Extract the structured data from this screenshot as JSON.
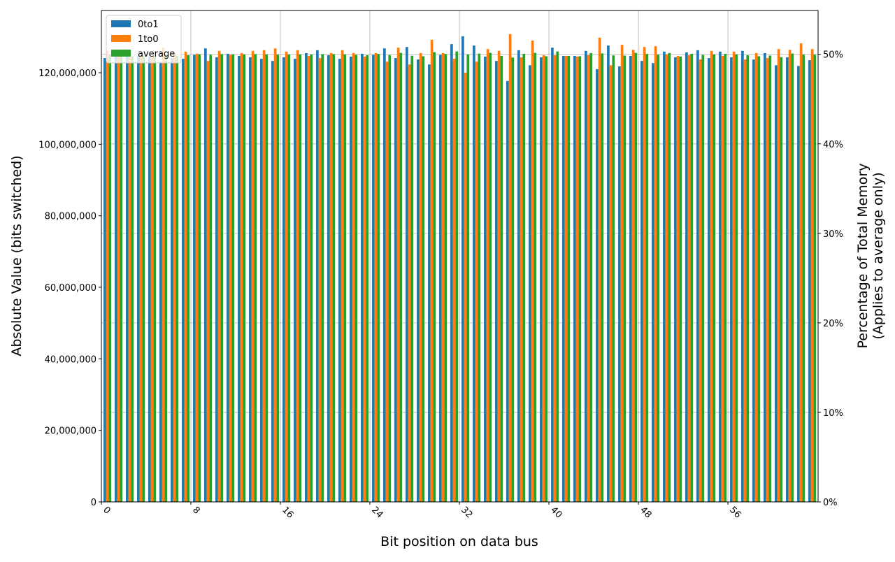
{
  "chart_data": {
    "type": "bar",
    "xlabel": "Bit position on data bus",
    "ylabel": "Absolute Value (bits switched)",
    "ylabel_right_line1": "Percentage of Total Memory",
    "ylabel_right_line2": "(Applies to average only)",
    "x": [
      0,
      1,
      2,
      3,
      4,
      5,
      6,
      7,
      8,
      9,
      10,
      11,
      12,
      13,
      14,
      15,
      16,
      17,
      18,
      19,
      20,
      21,
      22,
      23,
      24,
      25,
      26,
      27,
      28,
      29,
      30,
      31,
      32,
      33,
      34,
      35,
      36,
      37,
      38,
      39,
      40,
      41,
      42,
      43,
      44,
      45,
      46,
      47,
      48,
      49,
      50,
      51,
      52,
      53,
      54,
      55,
      56,
      57,
      58,
      59,
      60,
      61,
      62,
      63
    ],
    "xticks": [
      0,
      8,
      16,
      24,
      32,
      40,
      48,
      56
    ],
    "xlim": [
      0,
      64.06
    ],
    "ylim": [
      0,
      137400000
    ],
    "yticks": [
      0,
      20000000,
      40000000,
      60000000,
      80000000,
      100000000,
      120000000
    ],
    "ytick_labels": [
      "0",
      "20,000,000",
      "40,000,000",
      "60,000,000",
      "80,000,000",
      "100,000,000",
      "120,000,000"
    ],
    "ylim_right": [
      0,
      54.9
    ],
    "yticks_right": [
      0,
      10,
      20,
      30,
      40,
      50
    ],
    "ytick_labels_right": [
      "0%",
      "10%",
      "20%",
      "30%",
      "40%",
      "50%"
    ],
    "grid": "on (vertical at x ticks, horizontal at right-axis ticks)",
    "legend_placement": "top-left",
    "series": [
      {
        "name": "0to1",
        "color": "#1f77b4",
        "values": [
          124100000,
          124700000,
          124700000,
          124700000,
          124500000,
          123000000,
          124100000,
          123900000,
          125000000,
          126800000,
          124300000,
          125300000,
          124700000,
          124300000,
          123900000,
          123300000,
          124300000,
          123900000,
          125500000,
          126300000,
          124900000,
          123900000,
          124500000,
          125300000,
          125000000,
          126800000,
          124100000,
          127200000,
          123700000,
          122300000,
          125000000,
          128000000,
          130200000,
          127600000,
          124500000,
          123300000,
          117700000,
          126300000,
          122100000,
          124300000,
          127000000,
          124700000,
          124700000,
          126100000,
          121000000,
          127600000,
          121800000,
          124700000,
          123300000,
          122700000,
          125900000,
          124300000,
          125700000,
          126300000,
          124100000,
          125900000,
          124300000,
          126100000,
          123700000,
          125500000,
          122100000,
          124300000,
          121900000,
          123500000
        ]
      },
      {
        "name": "1to0",
        "color": "#ff7f0e",
        "values": [
          126100000,
          124700000,
          124300000,
          124900000,
          124700000,
          127000000,
          125500000,
          125900000,
          125300000,
          123300000,
          126100000,
          125000000,
          125500000,
          126100000,
          126300000,
          126800000,
          125900000,
          126300000,
          124700000,
          124100000,
          125500000,
          126300000,
          125500000,
          124500000,
          125500000,
          123100000,
          127000000,
          122300000,
          125500000,
          129200000,
          125500000,
          123900000,
          120000000,
          123100000,
          126600000,
          126100000,
          130800000,
          124300000,
          129000000,
          124900000,
          124900000,
          124700000,
          124500000,
          124900000,
          129800000,
          122100000,
          127800000,
          126400000,
          127200000,
          127400000,
          125100000,
          124700000,
          124900000,
          123700000,
          126100000,
          124700000,
          125900000,
          123700000,
          125500000,
          124100000,
          126600000,
          126400000,
          128200000,
          126600000
        ]
      },
      {
        "name": "average",
        "color": "#2ca02c",
        "values": [
          125100000,
          124700000,
          124500000,
          124800000,
          124600000,
          125000000,
          124800000,
          124900000,
          125150000,
          125050000,
          125200000,
          125150000,
          125100000,
          125200000,
          125100000,
          125050000,
          125100000,
          125100000,
          125100000,
          125200000,
          125200000,
          125100000,
          125000000,
          124900000,
          125250000,
          124950000,
          125550000,
          124750000,
          124600000,
          125750000,
          125250000,
          125950000,
          125100000,
          125350000,
          125550000,
          124700000,
          124250000,
          125300000,
          125550000,
          124600000,
          125950000,
          124700000,
          124600000,
          125500000,
          125400000,
          124850000,
          124800000,
          125550000,
          125250000,
          125050000,
          125500000,
          124500000,
          125300000,
          125000000,
          125100000,
          125300000,
          125100000,
          124900000,
          124600000,
          124800000,
          124350000,
          125350000,
          125050000,
          125050000
        ]
      }
    ]
  }
}
